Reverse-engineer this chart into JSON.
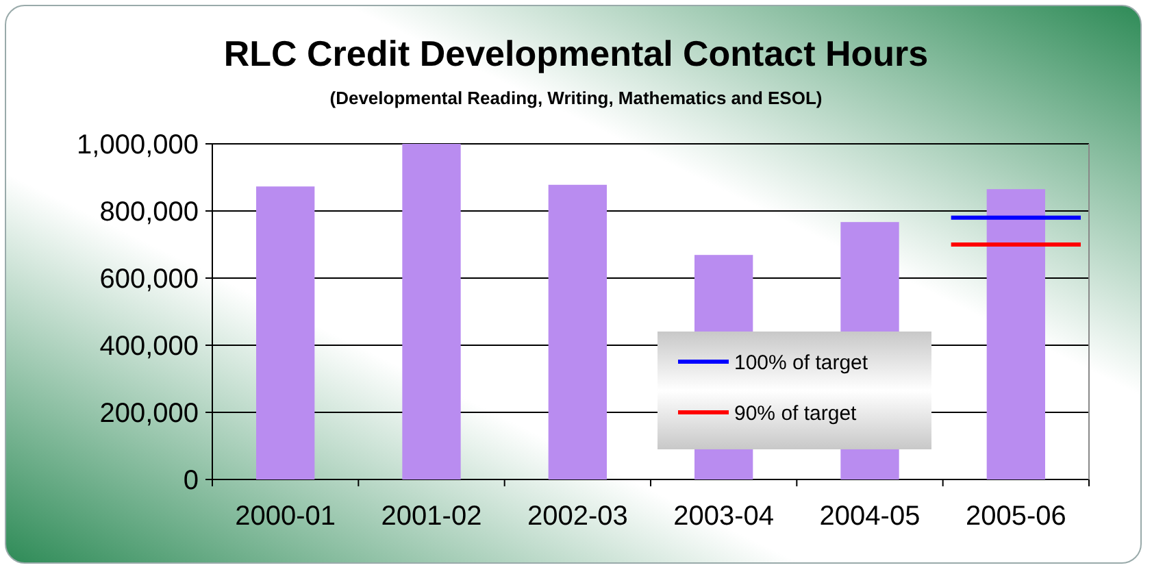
{
  "chart_data": {
    "type": "bar",
    "title": "RLC Credit Developmental Contact Hours",
    "subtitle": "(Developmental Reading, Writing, Mathematics and ESOL)",
    "categories": [
      "2000-01",
      "2001-02",
      "2002-03",
      "2003-04",
      "2004-05",
      "2005-06"
    ],
    "series": [
      {
        "color": "#b98cf0",
        "values": [
          873000,
          1000000,
          878000,
          669000,
          767000,
          865000
        ]
      }
    ],
    "ref_lines": [
      {
        "axis": "y",
        "value": 780000,
        "label": "100% of target",
        "color": "#0000ff"
      },
      {
        "axis": "y",
        "value": 700000,
        "label": "90% of target",
        "color": "#ff0000"
      }
    ],
    "ylim": [
      0,
      1000000
    ],
    "yticks": [
      {
        "value": 0,
        "label": "0"
      },
      {
        "value": 200000,
        "label": "200,000"
      },
      {
        "value": 400000,
        "label": "400,000"
      },
      {
        "value": 600000,
        "label": "600,000"
      },
      {
        "value": 800000,
        "label": "800,000"
      },
      {
        "value": 1000000,
        "label": "1,000,000"
      }
    ],
    "grid": "y",
    "legend": "bottom"
  }
}
